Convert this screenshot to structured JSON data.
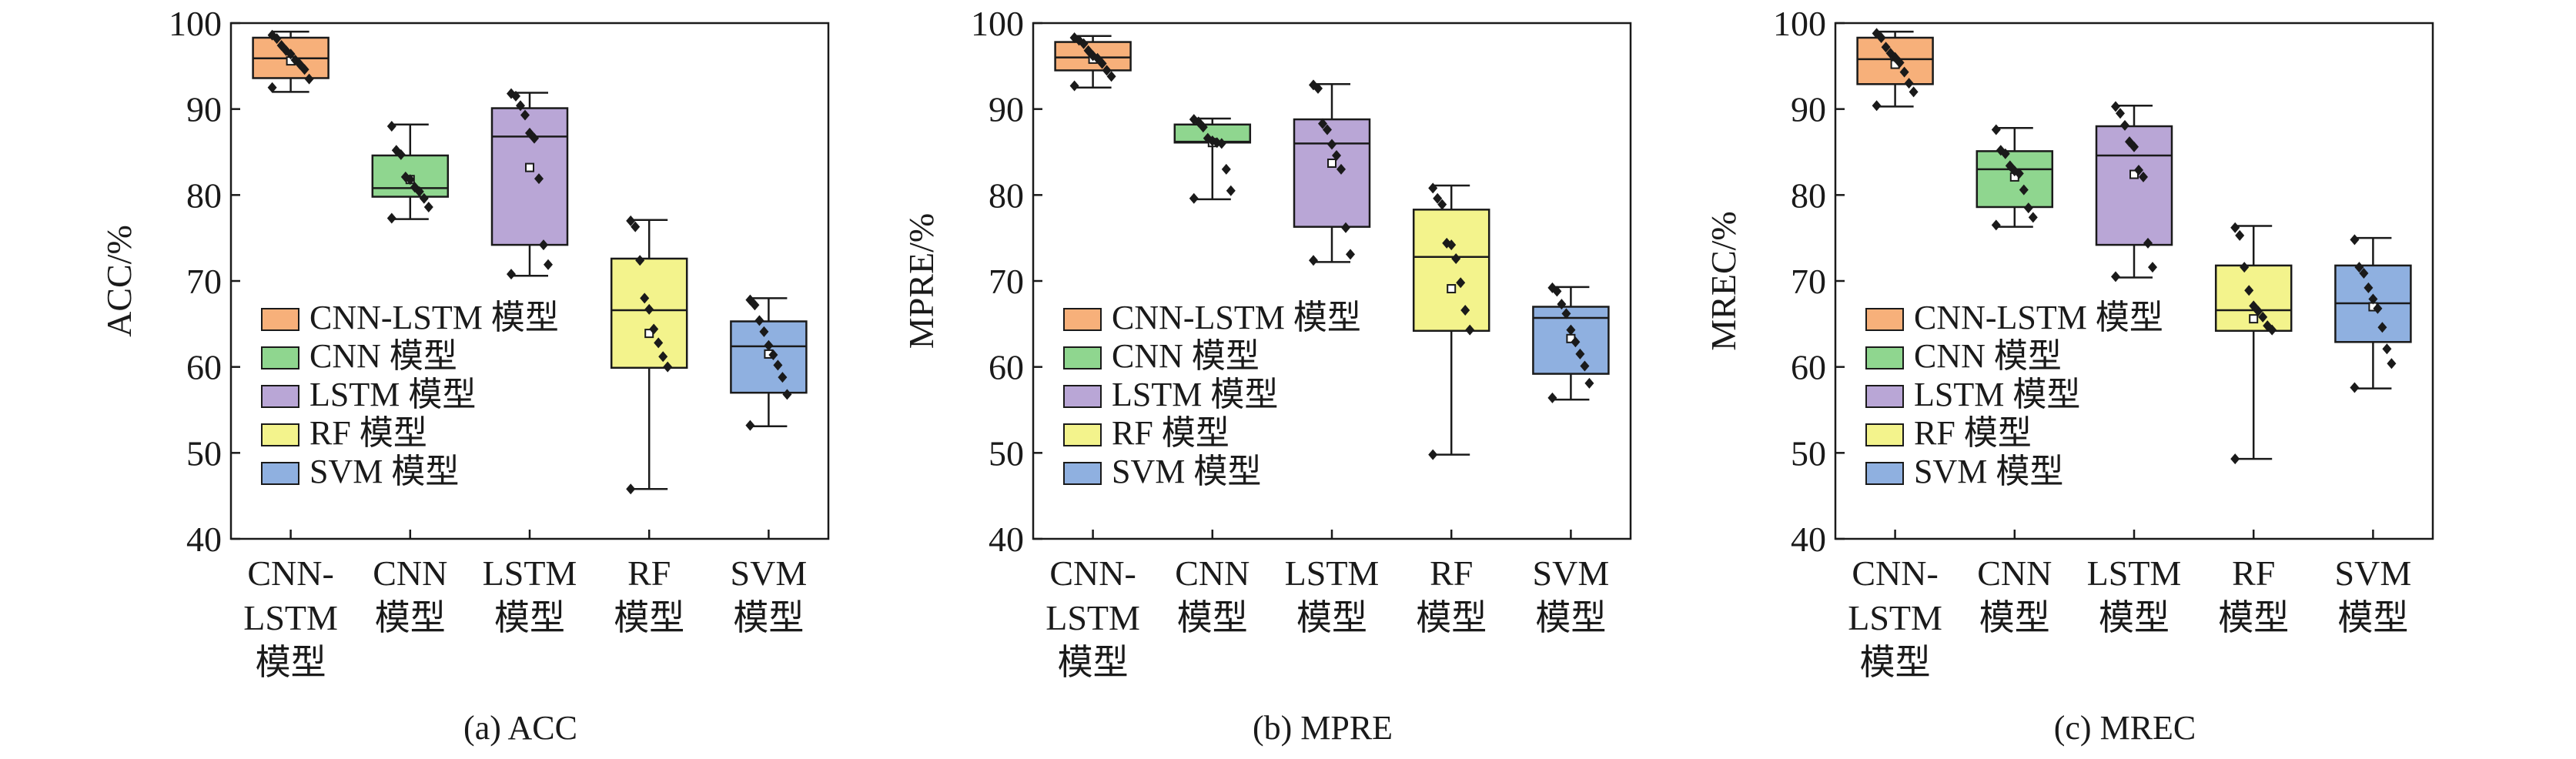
{
  "figure": {
    "captions": [
      "(a) ACC",
      "(b) MPRE",
      "(c) MREC"
    ]
  },
  "chart_data": [
    {
      "type": "box",
      "ylabel": "ACC/%",
      "ylim": [
        40,
        100
      ],
      "yticks": [
        40,
        50,
        60,
        70,
        80,
        90,
        100
      ],
      "categories": [
        [
          "CNN-",
          "LSTM",
          "模型"
        ],
        [
          "CNN",
          "模型"
        ],
        [
          "LSTM",
          "模型"
        ],
        [
          "RF",
          "模型"
        ],
        [
          "SVM",
          "模型"
        ]
      ],
      "legend": [
        "CNN-LSTM 模型",
        "CNN 模型",
        "LSTM 模型",
        "RF 模型",
        "SVM 模型"
      ],
      "legend_position": "bottom-left",
      "colors": [
        "#f7b07a",
        "#8fd68f",
        "#b9a6d6",
        "#f3f38c",
        "#8fb0e0"
      ],
      "series": [
        {
          "name": "CNN-LSTM 模型",
          "min": 92,
          "q1": 93.6,
          "median": 95.9,
          "q3": 98.3,
          "max": 99,
          "mean": 95.6,
          "points": [
            98.6,
            98.2,
            97.4,
            96.8,
            96.4,
            95.7,
            95.2,
            94.6,
            93.5,
            92.5
          ]
        },
        {
          "name": "CNN 模型",
          "min": 77.2,
          "q1": 79.8,
          "median": 80.8,
          "q3": 84.6,
          "max": 88.2,
          "mean": 81.8,
          "points": [
            88,
            85.2,
            84.7,
            82.1,
            81.8,
            80.9,
            80.4,
            79.6,
            78.6,
            77.3
          ]
        },
        {
          "name": "LSTM 模型",
          "min": 70.6,
          "q1": 74.2,
          "median": 86.8,
          "q3": 90.1,
          "max": 91.9,
          "mean": 83.2,
          "points": [
            91.8,
            91.5,
            90.4,
            89.3,
            87.2,
            86.6,
            81.9,
            74.2,
            71.9,
            70.8
          ]
        },
        {
          "name": "RF 模型",
          "min": 45.8,
          "q1": 59.9,
          "median": 66.6,
          "q3": 72.6,
          "max": 77.1,
          "mean": 63.9,
          "points": [
            77,
            76.3,
            72.4,
            68,
            66.7,
            64.4,
            62.8,
            61.2,
            60,
            45.8
          ]
        },
        {
          "name": "SVM 模型",
          "min": 53.1,
          "q1": 57,
          "median": 62.4,
          "q3": 65.3,
          "max": 68,
          "mean": 61.5,
          "points": [
            67.8,
            67.2,
            65.4,
            64.1,
            62.5,
            61.4,
            60.2,
            58.8,
            56.8,
            53.2
          ]
        }
      ]
    },
    {
      "type": "box",
      "ylabel": "MPRE/%",
      "ylim": [
        40,
        100
      ],
      "yticks": [
        40,
        50,
        60,
        70,
        80,
        90,
        100
      ],
      "categories": [
        [
          "CNN-",
          "LSTM",
          "模型"
        ],
        [
          "CNN",
          "模型"
        ],
        [
          "LSTM",
          "模型"
        ],
        [
          "RF",
          "模型"
        ],
        [
          "SVM",
          "模型"
        ]
      ],
      "legend": [
        "CNN-LSTM 模型",
        "CNN 模型",
        "LSTM 模型",
        "RF 模型",
        "SVM 模型"
      ],
      "legend_position": "bottom-left",
      "colors": [
        "#f7b07a",
        "#8fd68f",
        "#b9a6d6",
        "#f3f38c",
        "#8fb0e0"
      ],
      "series": [
        {
          "name": "CNN-LSTM 模型",
          "min": 92.5,
          "q1": 94.5,
          "median": 96,
          "q3": 97.8,
          "max": 98.5,
          "mean": 95.8,
          "points": [
            98.3,
            98,
            97.6,
            96.8,
            96.2,
            95.9,
            95.3,
            94.5,
            93.8,
            92.7
          ]
        },
        {
          "name": "CNN 模型",
          "min": 79.5,
          "q1": 86.1,
          "median": 86.2,
          "q3": 88.2,
          "max": 88.9,
          "mean": 86.1,
          "points": [
            88.8,
            88.5,
            87.9,
            86.6,
            86.3,
            86.1,
            86,
            83,
            80.5,
            79.6
          ]
        },
        {
          "name": "LSTM 模型",
          "min": 72.2,
          "q1": 76.3,
          "median": 86,
          "q3": 88.8,
          "max": 92.9,
          "mean": 83.7,
          "points": [
            92.8,
            92.4,
            88.3,
            87.6,
            85.9,
            84.6,
            83,
            76.2,
            73.1,
            72.4
          ]
        },
        {
          "name": "RF 模型",
          "min": 49.8,
          "q1": 64.2,
          "median": 72.8,
          "q3": 78.3,
          "max": 81.1,
          "mean": 69.1,
          "points": [
            80.8,
            79.6,
            78.9,
            74.4,
            74.2,
            72.6,
            69.8,
            66.6,
            64.3,
            49.8
          ]
        },
        {
          "name": "SVM 模型",
          "min": 56.2,
          "q1": 59.2,
          "median": 65.7,
          "q3": 67,
          "max": 69.3,
          "mean": 63.3,
          "points": [
            69.2,
            68.8,
            67.3,
            66.2,
            64.3,
            62.9,
            61.5,
            60.1,
            58.1,
            56.4
          ]
        }
      ]
    },
    {
      "type": "box",
      "ylabel": "MREC/%",
      "ylim": [
        40,
        100
      ],
      "yticks": [
        40,
        50,
        60,
        70,
        80,
        90,
        100
      ],
      "categories": [
        [
          "CNN-",
          "LSTM",
          "模型"
        ],
        [
          "CNN",
          "模型"
        ],
        [
          "LSTM",
          "模型"
        ],
        [
          "RF",
          "模型"
        ],
        [
          "SVM",
          "模型"
        ]
      ],
      "legend": [
        "CNN-LSTM 模型",
        "CNN 模型",
        "LSTM 模型",
        "RF 模型",
        "SVM 模型"
      ],
      "legend_position": "bottom-left",
      "colors": [
        "#f7b07a",
        "#8fd68f",
        "#b9a6d6",
        "#f3f38c",
        "#8fb0e0"
      ],
      "series": [
        {
          "name": "CNN-LSTM 模型",
          "min": 90.3,
          "q1": 92.9,
          "median": 95.8,
          "q3": 98.3,
          "max": 99,
          "mean": 95.2,
          "points": [
            98.8,
            98.3,
            97.2,
            96.5,
            96,
            95.4,
            94.3,
            93,
            92,
            90.4
          ]
        },
        {
          "name": "CNN 模型",
          "min": 76.3,
          "q1": 78.6,
          "median": 83,
          "q3": 85.1,
          "max": 87.8,
          "mean": 82.1,
          "points": [
            87.6,
            85.2,
            84.8,
            83.4,
            82.8,
            82.5,
            80.6,
            78.5,
            77.4,
            76.5
          ]
        },
        {
          "name": "LSTM 模型",
          "min": 70.4,
          "q1": 74.2,
          "median": 84.6,
          "q3": 88,
          "max": 90.4,
          "mean": 82.4,
          "points": [
            90.3,
            89.5,
            88.1,
            86.2,
            85.6,
            82.9,
            82.1,
            74.4,
            71.6,
            70.5
          ]
        },
        {
          "name": "RF 模型",
          "min": 49.3,
          "q1": 64.2,
          "median": 66.6,
          "q3": 71.8,
          "max": 76.4,
          "mean": 65.6,
          "points": [
            76.2,
            75.3,
            71.6,
            68.9,
            67.1,
            66.5,
            65.8,
            64.8,
            64.3,
            49.3
          ]
        },
        {
          "name": "SVM 模型",
          "min": 57.5,
          "q1": 62.9,
          "median": 67.4,
          "q3": 71.8,
          "max": 75,
          "mean": 67,
          "points": [
            74.8,
            71.6,
            70.9,
            69.2,
            67.9,
            66.8,
            64.6,
            62.1,
            60.4,
            57.6
          ]
        }
      ]
    }
  ]
}
